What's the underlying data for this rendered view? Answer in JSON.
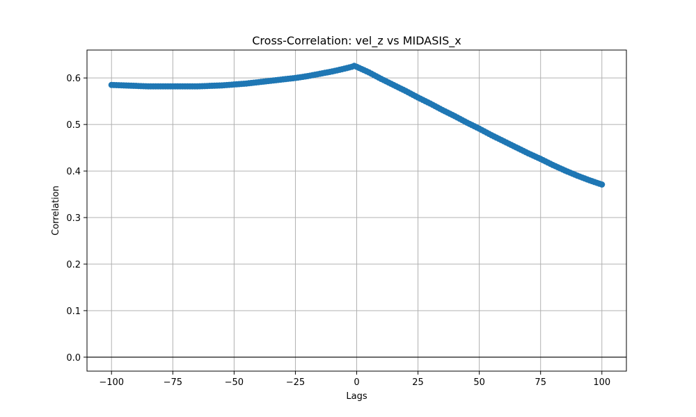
{
  "chart_data": {
    "type": "scatter",
    "title": "Cross-Correlation: vel_z vs MIDASIS_x",
    "xlabel": "Lags",
    "ylabel": "Correlation",
    "xlim": [
      -110,
      110
    ],
    "ylim": [
      -0.03,
      0.66
    ],
    "xticks": [
      -100,
      -75,
      -50,
      -25,
      0,
      25,
      50,
      75,
      100
    ],
    "xtick_labels": [
      "−100",
      "−75",
      "−50",
      "−25",
      "0",
      "25",
      "50",
      "75",
      "100"
    ],
    "yticks": [
      0.0,
      0.1,
      0.2,
      0.3,
      0.4,
      0.5,
      0.6
    ],
    "ytick_labels": [
      "0.0",
      "0.1",
      "0.2",
      "0.3",
      "0.4",
      "0.5",
      "0.6"
    ],
    "grid": true,
    "reference_line_y": 0,
    "series": [
      {
        "color": "#1f77b4",
        "marker": "circle",
        "line": true,
        "points": [
          [
            -100,
            0.585
          ],
          [
            -95,
            0.584
          ],
          [
            -90,
            0.583
          ],
          [
            -85,
            0.582
          ],
          [
            -80,
            0.582
          ],
          [
            -75,
            0.582
          ],
          [
            -70,
            0.582
          ],
          [
            -65,
            0.582
          ],
          [
            -60,
            0.583
          ],
          [
            -55,
            0.584
          ],
          [
            -50,
            0.586
          ],
          [
            -45,
            0.588
          ],
          [
            -40,
            0.591
          ],
          [
            -35,
            0.594
          ],
          [
            -30,
            0.597
          ],
          [
            -25,
            0.6
          ],
          [
            -20,
            0.604
          ],
          [
            -15,
            0.609
          ],
          [
            -10,
            0.614
          ],
          [
            -5,
            0.62
          ],
          [
            -2,
            0.624
          ],
          [
            -1,
            0.626
          ],
          [
            0,
            0.624
          ],
          [
            5,
            0.612
          ],
          [
            10,
            0.598
          ],
          [
            15,
            0.585
          ],
          [
            20,
            0.572
          ],
          [
            25,
            0.558
          ],
          [
            30,
            0.545
          ],
          [
            35,
            0.531
          ],
          [
            40,
            0.518
          ],
          [
            45,
            0.504
          ],
          [
            50,
            0.491
          ],
          [
            55,
            0.477
          ],
          [
            60,
            0.464
          ],
          [
            65,
            0.451
          ],
          [
            70,
            0.438
          ],
          [
            75,
            0.426
          ],
          [
            80,
            0.413
          ],
          [
            85,
            0.401
          ],
          [
            90,
            0.39
          ],
          [
            95,
            0.38
          ],
          [
            100,
            0.371
          ]
        ]
      }
    ]
  }
}
